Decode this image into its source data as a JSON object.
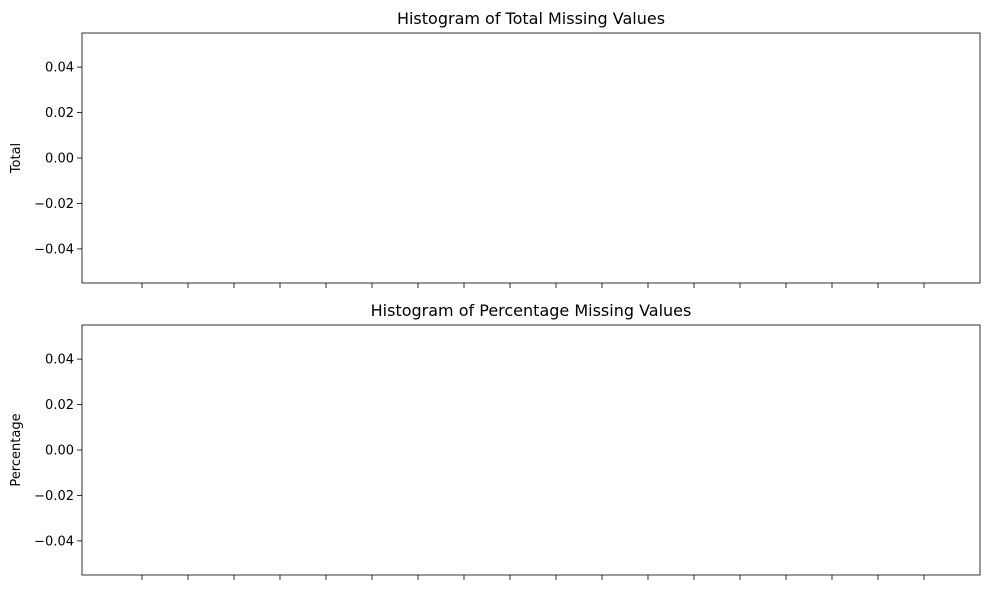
{
  "chart_data": [
    {
      "type": "bar",
      "title": "Histogram of Total Missing Values",
      "xlabel": "",
      "ylabel": "Total",
      "categories": [],
      "values": [],
      "ylim": [
        -0.055,
        0.055
      ],
      "yticks": [
        0.04,
        0.02,
        0.0,
        -0.02,
        -0.04
      ],
      "ytick_labels": [
        "0.04",
        "0.02",
        "0.00",
        "−0.02",
        "−0.04"
      ],
      "xtick_count": 18,
      "xtick_labels_visible": false,
      "grid": false,
      "legend": "none"
    },
    {
      "type": "bar",
      "title": "Histogram of Percentage Missing Values",
      "xlabel": "",
      "ylabel": "Percentage",
      "categories": [],
      "values": [],
      "ylim": [
        -0.055,
        0.055
      ],
      "yticks": [
        0.04,
        0.02,
        0.0,
        -0.02,
        -0.04
      ],
      "ytick_labels": [
        "0.04",
        "0.02",
        "0.00",
        "−0.02",
        "−0.04"
      ],
      "xtick_count": 18,
      "xtick_labels_visible": false,
      "grid": false,
      "legend": "none"
    }
  ]
}
